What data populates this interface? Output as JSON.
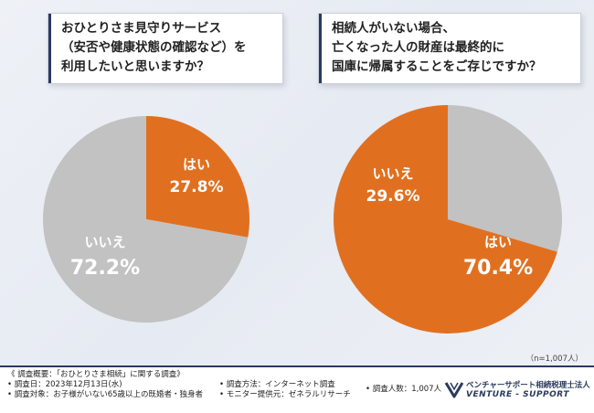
{
  "chart_data": [
    {
      "type": "pie",
      "title": "おひとりさま見守りサービス（安否や健康状態の確認など）を利用したいと思いますか？",
      "title_lines": [
        "おひとりさま見守りサービス",
        "（安否や健康状態の確認など）を",
        "利用したいと思いますか？"
      ],
      "slices": [
        {
          "label": "はい",
          "value": 27.8,
          "display": "27.8%",
          "color": "#e07020"
        },
        {
          "label": "いいえ",
          "value": 72.2,
          "display": "72.2%",
          "color": "#c2c2c2"
        }
      ]
    },
    {
      "type": "pie",
      "title": "相続人がいない場合、亡くなった人の財産は最終的に国庫に帰属することをご存じですか？",
      "title_lines": [
        "相続人がいない場合、",
        "亡くなった人の財産は最終的に",
        "国庫に帰属することをご存じですか？"
      ],
      "slices": [
        {
          "label": "いいえ",
          "value": 29.6,
          "display": "29.6%",
          "color": "#c2c2c2"
        },
        {
          "label": "はい",
          "value": 70.4,
          "display": "70.4%",
          "color": "#e07020"
        }
      ]
    }
  ],
  "sample_note": "（n=1,007人）",
  "footer": {
    "overview": "《 調査概要：「おひとりさま相続」に関する調査》",
    "date": "• 調査日：2023年12月13日(水)",
    "target": "• 調査対象：お子様がいない65歳以上の既婚者・独身者",
    "method": "• 調査方法：インターネット調査",
    "provider": "• モニター提供元：ゼネラルリサーチ",
    "count": "• 調査人数：1,007人",
    "brand_jp": "ベンチャーサポート相続税理士法人",
    "brand_en": "VENTURE - SUPPORT",
    "brand_color": "#2b3a5c"
  }
}
